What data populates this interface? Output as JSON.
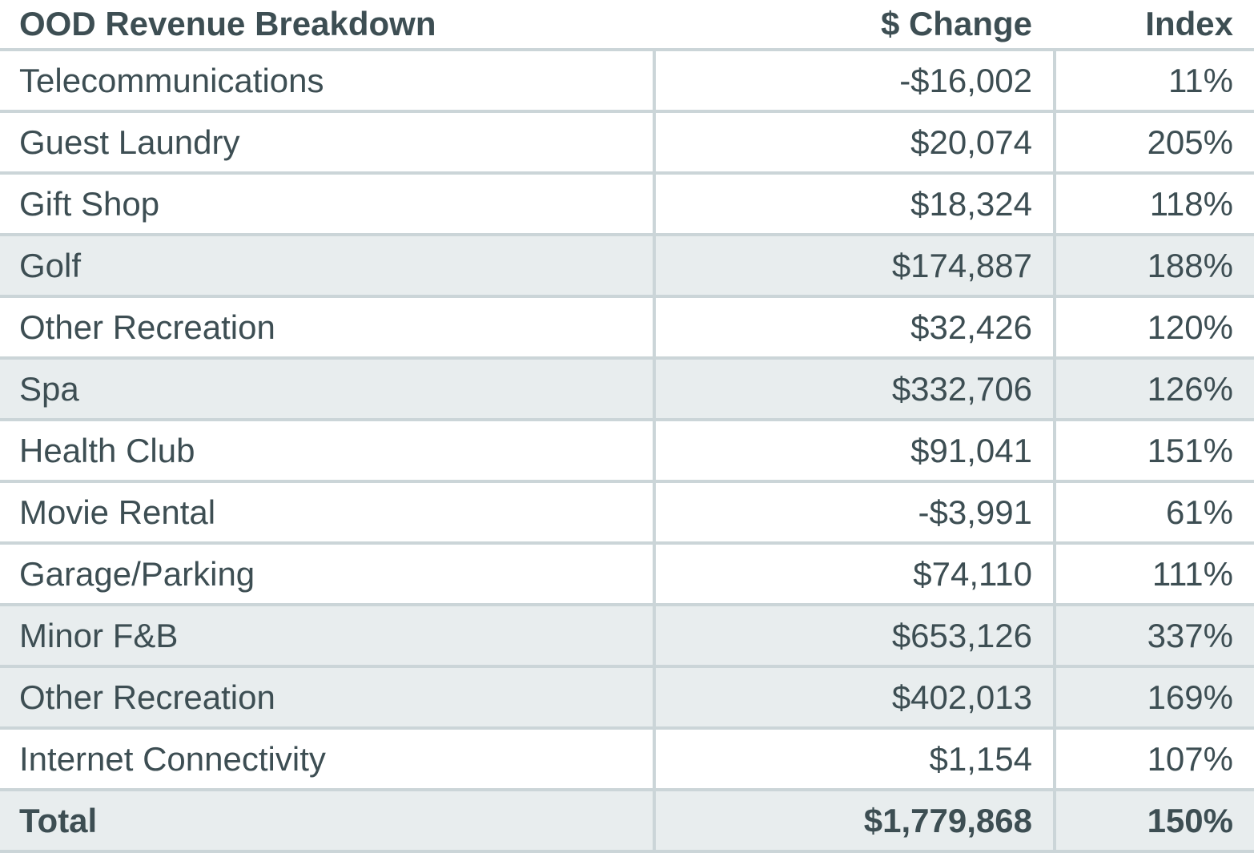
{
  "colors": {
    "text": "#3d4e53",
    "row_shade": "#e8edee",
    "grid_line": "#cbd5d8",
    "background": "#ffffff"
  },
  "chart_data": {
    "type": "table",
    "title": "OOD Revenue Breakdown",
    "columns": [
      "OOD Revenue Breakdown",
      "$ Change",
      "Index"
    ],
    "rows": [
      {
        "label": "Telecommunications",
        "change": "-$16,002",
        "index": "11%",
        "shaded": false,
        "bold": false
      },
      {
        "label": "Guest Laundry",
        "change": "$20,074",
        "index": "205%",
        "shaded": false,
        "bold": false
      },
      {
        "label": "Gift Shop",
        "change": "$18,324",
        "index": "118%",
        "shaded": false,
        "bold": false
      },
      {
        "label": "Golf",
        "change": "$174,887",
        "index": "188%",
        "shaded": true,
        "bold": false
      },
      {
        "label": "Other Recreation",
        "change": "$32,426",
        "index": "120%",
        "shaded": false,
        "bold": false
      },
      {
        "label": "Spa",
        "change": "$332,706",
        "index": "126%",
        "shaded": true,
        "bold": false
      },
      {
        "label": "Health Club",
        "change": "$91,041",
        "index": "151%",
        "shaded": false,
        "bold": false
      },
      {
        "label": "Movie Rental",
        "change": "-$3,991",
        "index": "61%",
        "shaded": false,
        "bold": false
      },
      {
        "label": "Garage/Parking",
        "change": "$74,110",
        "index": "111%",
        "shaded": false,
        "bold": false
      },
      {
        "label": "Minor F&B",
        "change": "$653,126",
        "index": "337%",
        "shaded": true,
        "bold": false
      },
      {
        "label": "Other Recreation",
        "change": "$402,013",
        "index": "169%",
        "shaded": true,
        "bold": false
      },
      {
        "label": "Internet Connectivity",
        "change": "$1,154",
        "index": "107%",
        "shaded": false,
        "bold": false
      },
      {
        "label": "Total",
        "change": "$1,779,868",
        "index": "150%",
        "shaded": true,
        "bold": true
      }
    ]
  }
}
